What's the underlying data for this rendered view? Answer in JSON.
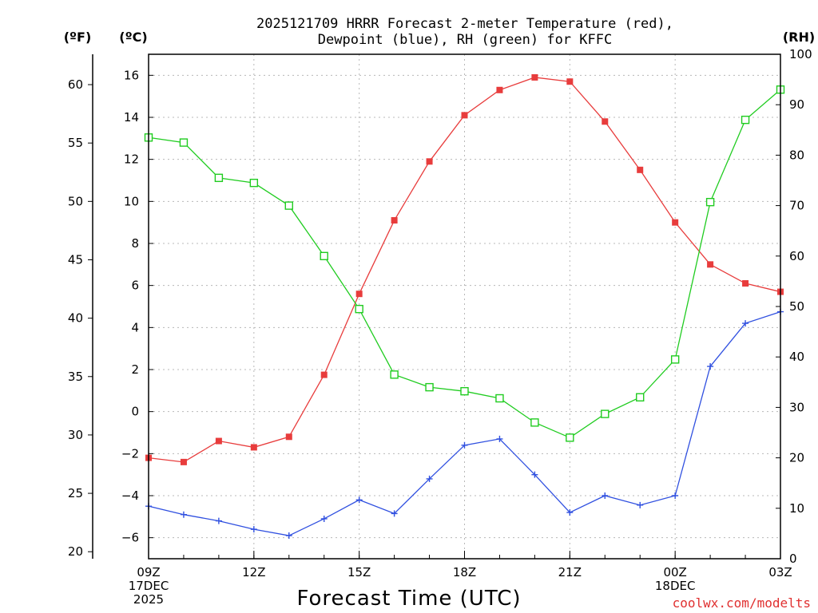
{
  "chart_data": {
    "type": "line",
    "title_line1": "2025121709 HRRR Forecast 2-meter Temperature (red),",
    "title_line2": "Dewpoint (blue), RH (green) for KFFC",
    "xlabel": "Forecast Time (UTC)",
    "credit": "coolwx.com/modelts",
    "units": {
      "fahrenheit": "(ºF)",
      "celsius": "(ºC)",
      "rh": "(RH)"
    },
    "hours": [
      9,
      10,
      11,
      12,
      13,
      14,
      15,
      16,
      17,
      18,
      19,
      20,
      21,
      22,
      23,
      24,
      25,
      26,
      27
    ],
    "x_ticks": [
      {
        "hour": 9,
        "lines": [
          "09Z",
          "17DEC",
          "2025"
        ]
      },
      {
        "hour": 12,
        "lines": [
          "12Z"
        ]
      },
      {
        "hour": 15,
        "lines": [
          "15Z"
        ]
      },
      {
        "hour": 18,
        "lines": [
          "18Z"
        ]
      },
      {
        "hour": 21,
        "lines": [
          "21Z"
        ]
      },
      {
        "hour": 24,
        "lines": [
          "00Z",
          "18DEC"
        ]
      },
      {
        "hour": 27,
        "lines": [
          "03Z"
        ]
      }
    ],
    "xlim": [
      9,
      27
    ],
    "ylim_c": [
      -7,
      17
    ],
    "celsius_ticks": [
      16,
      14,
      12,
      10,
      8,
      6,
      4,
      2,
      0,
      -2,
      -4,
      -6
    ],
    "fahrenheit_ticks": [
      60,
      55,
      50,
      45,
      40,
      35,
      30,
      25,
      20
    ],
    "rh_ticks": [
      100,
      90,
      80,
      70,
      60,
      50,
      40,
      30,
      20,
      10,
      0
    ],
    "ylim_rh": [
      0,
      100
    ],
    "series": [
      {
        "name": "Temperature",
        "color": "#e83c3c",
        "marker": "filled-square",
        "values": [
          -2.2,
          -2.4,
          -1.4,
          -1.7,
          -1.2,
          1.75,
          5.6,
          9.1,
          11.9,
          14.1,
          15.3,
          15.9,
          15.7,
          13.8,
          11.5,
          9.0,
          7.0,
          6.1,
          5.7
        ]
      },
      {
        "name": "Dewpoint",
        "color": "#3050e0",
        "marker": "plus",
        "values": [
          -4.5,
          -4.9,
          -5.2,
          -5.6,
          -5.9,
          -5.1,
          -4.2,
          -4.85,
          -3.2,
          -1.6,
          -1.3,
          -3.0,
          -4.8,
          -4.0,
          -4.45,
          -4.0,
          2.15,
          4.2,
          4.75
        ]
      },
      {
        "name": "RH",
        "color": "#20cc20",
        "marker": "open-square",
        "values": [
          83.5,
          82.5,
          75.5,
          74.5,
          70,
          60,
          49.5,
          36.5,
          34,
          33.2,
          31.8,
          27,
          24,
          28.7,
          32,
          39.5,
          70.7,
          87,
          93
        ]
      }
    ]
  }
}
